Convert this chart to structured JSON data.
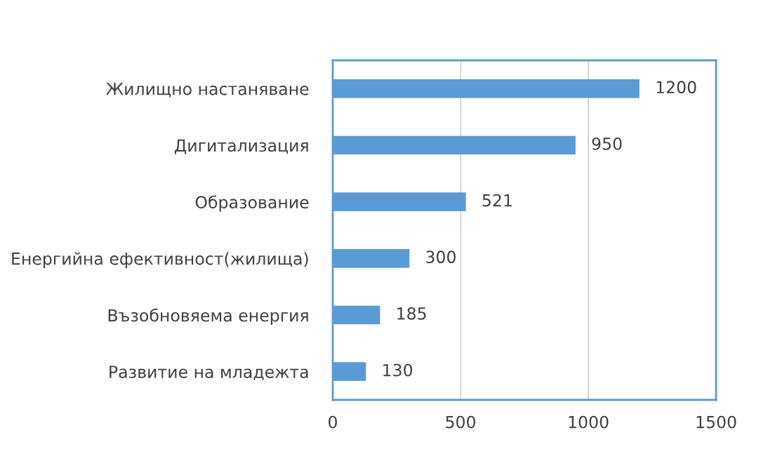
{
  "chart_data": {
    "type": "bar",
    "orientation": "horizontal",
    "categories": [
      "Жилищно настаняване",
      "Дигитализация",
      "Образование",
      "Енергийна ефективност(жилища)",
      "Възобновяема енергия",
      "Развитие на младежта"
    ],
    "values": [
      1200,
      950,
      521,
      300,
      185,
      130
    ],
    "color": "#5b9bd5",
    "xlim": [
      0,
      1500
    ],
    "xticks": [
      0,
      500,
      1000,
      1500
    ],
    "grid": "x",
    "data_labels": true,
    "legend": false
  }
}
